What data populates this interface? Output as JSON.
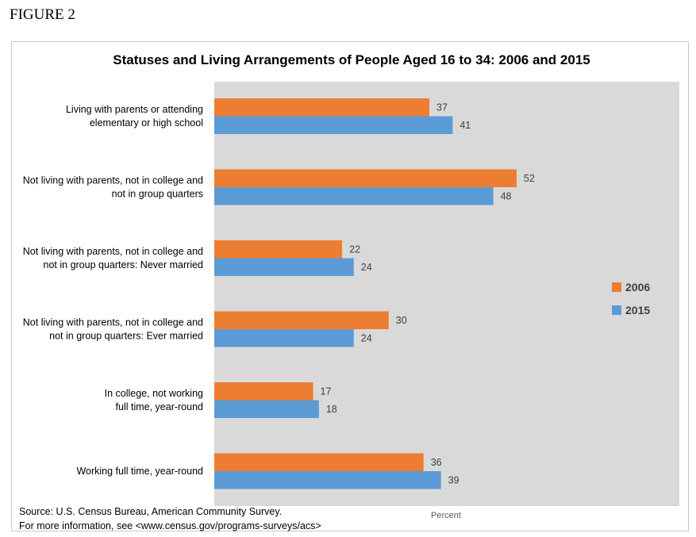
{
  "figure_label": "FIGURE 2",
  "chart_data": {
    "type": "bar",
    "orientation": "horizontal",
    "title": "Statuses and Living Arrangements of People Aged 16 to 34: 2006 and 2015",
    "xlabel": "Percent",
    "ylabel": "",
    "xlim": [
      0,
      80
    ],
    "grid": false,
    "legend_position": "right",
    "categories": [
      [
        "Living with parents or attending",
        "elementary or high school"
      ],
      [
        "Not living with parents, not in college and",
        "not in group quarters"
      ],
      [
        "Not living with parents, not in college and",
        "not in group quarters: Never married"
      ],
      [
        "Not living with parents, not in college and",
        "not in group quarters: Ever married"
      ],
      [
        "In college, not working",
        "full time, year-round"
      ],
      [
        "Working full time, year-round"
      ]
    ],
    "series": [
      {
        "name": "2006",
        "color": "#ED7D31",
        "values": [
          37,
          52,
          22,
          30,
          17,
          36
        ]
      },
      {
        "name": "2015",
        "color": "#5B9BD5",
        "values": [
          41,
          48,
          24,
          24,
          18,
          39
        ]
      }
    ],
    "plot_background": "#D9D9D9"
  },
  "source": {
    "line1": "Source: U.S. Census Bureau, American Community Survey.",
    "line2": "For more information, see <www.census.gov/programs-surveys/acs>"
  }
}
